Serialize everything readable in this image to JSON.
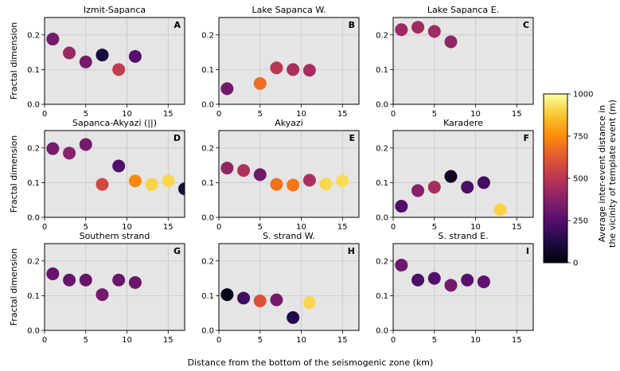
{
  "chart_data": {
    "type": "scatter",
    "xlabel": "Distance from the bottom of the seismogenic zone (km)",
    "ylabel": "Fractal dimension",
    "xlim": [
      0,
      17
    ],
    "ylim": [
      0,
      0.25
    ],
    "xticks": [
      0,
      5,
      10,
      15
    ],
    "xtick_labels": [
      "0",
      "5",
      "10",
      "15"
    ],
    "yticks": [
      0.0,
      0.1,
      0.2
    ],
    "ytick_labels": [
      "0.0",
      "0.1",
      "0.2"
    ],
    "grid": true,
    "colormap": "inferno",
    "colorbar": {
      "label_line1": "Average inter-event distance in",
      "label_line2": "the vicinity of template event (m)",
      "range": [
        0,
        1000
      ],
      "ticks": [
        0,
        250,
        500,
        750,
        1000
      ],
      "tick_labels": [
        "0",
        "250",
        "500",
        "750",
        "1000"
      ]
    },
    "panels": [
      {
        "title": "Izmit-Sapanca",
        "letter": "A",
        "points": [
          {
            "x": 1,
            "y": 0.188,
            "c": 330
          },
          {
            "x": 3,
            "y": 0.148,
            "c": 420
          },
          {
            "x": 5,
            "y": 0.122,
            "c": 330
          },
          {
            "x": 7,
            "y": 0.142,
            "c": 110
          },
          {
            "x": 9,
            "y": 0.1,
            "c": 530
          },
          {
            "x": 11,
            "y": 0.138,
            "c": 260
          }
        ]
      },
      {
        "title": "Lake Sapanca W.",
        "letter": "B",
        "points": [
          {
            "x": 1,
            "y": 0.045,
            "c": 320
          },
          {
            "x": 5,
            "y": 0.06,
            "c": 680
          },
          {
            "x": 7,
            "y": 0.105,
            "c": 500
          },
          {
            "x": 9,
            "y": 0.1,
            "c": 460
          },
          {
            "x": 11,
            "y": 0.098,
            "c": 450
          }
        ]
      },
      {
        "title": "Lake Sapanca E.",
        "letter": "C",
        "points": [
          {
            "x": 1,
            "y": 0.215,
            "c": 430
          },
          {
            "x": 3,
            "y": 0.222,
            "c": 440
          },
          {
            "x": 5,
            "y": 0.21,
            "c": 440
          },
          {
            "x": 7,
            "y": 0.18,
            "c": 400
          }
        ]
      },
      {
        "title": "Sapanca-Akyazi (||)",
        "letter": "D",
        "points": [
          {
            "x": 1,
            "y": 0.198,
            "c": 330
          },
          {
            "x": 3,
            "y": 0.185,
            "c": 380
          },
          {
            "x": 5,
            "y": 0.21,
            "c": 330
          },
          {
            "x": 7,
            "y": 0.095,
            "c": 570
          },
          {
            "x": 9,
            "y": 0.148,
            "c": 240
          },
          {
            "x": 11,
            "y": 0.105,
            "c": 740
          },
          {
            "x": 13,
            "y": 0.095,
            "c": 900
          },
          {
            "x": 15,
            "y": 0.105,
            "c": 910
          },
          {
            "x": 17,
            "y": 0.082,
            "c": 110
          }
        ]
      },
      {
        "title": "Akyazi",
        "letter": "E",
        "points": [
          {
            "x": 1,
            "y": 0.142,
            "c": 400
          },
          {
            "x": 3,
            "y": 0.135,
            "c": 470
          },
          {
            "x": 5,
            "y": 0.123,
            "c": 320
          },
          {
            "x": 7,
            "y": 0.095,
            "c": 690
          },
          {
            "x": 9,
            "y": 0.093,
            "c": 700
          },
          {
            "x": 11,
            "y": 0.107,
            "c": 460
          },
          {
            "x": 13,
            "y": 0.096,
            "c": 910
          },
          {
            "x": 15,
            "y": 0.105,
            "c": 920
          }
        ]
      },
      {
        "title": "Karadere",
        "letter": "F",
        "points": [
          {
            "x": 1,
            "y": 0.032,
            "c": 240
          },
          {
            "x": 3,
            "y": 0.077,
            "c": 370
          },
          {
            "x": 5,
            "y": 0.087,
            "c": 450
          },
          {
            "x": 7,
            "y": 0.118,
            "c": 60
          },
          {
            "x": 9,
            "y": 0.087,
            "c": 230
          },
          {
            "x": 11,
            "y": 0.1,
            "c": 210
          },
          {
            "x": 13,
            "y": 0.022,
            "c": 900
          }
        ]
      },
      {
        "title": "Southern strand",
        "letter": "G",
        "points": [
          {
            "x": 1,
            "y": 0.163,
            "c": 290
          },
          {
            "x": 3,
            "y": 0.145,
            "c": 290
          },
          {
            "x": 5,
            "y": 0.145,
            "c": 290
          },
          {
            "x": 7,
            "y": 0.103,
            "c": 330
          },
          {
            "x": 9,
            "y": 0.145,
            "c": 300
          },
          {
            "x": 11,
            "y": 0.138,
            "c": 300
          }
        ]
      },
      {
        "title": "S. strand W.",
        "letter": "H",
        "points": [
          {
            "x": 1,
            "y": 0.103,
            "c": 40
          },
          {
            "x": 3,
            "y": 0.093,
            "c": 200
          },
          {
            "x": 5,
            "y": 0.085,
            "c": 600
          },
          {
            "x": 7,
            "y": 0.088,
            "c": 330
          },
          {
            "x": 9,
            "y": 0.037,
            "c": 130
          },
          {
            "x": 11,
            "y": 0.08,
            "c": 910
          }
        ]
      },
      {
        "title": "S. strand E.",
        "letter": "I",
        "points": [
          {
            "x": 1,
            "y": 0.188,
            "c": 310
          },
          {
            "x": 3,
            "y": 0.145,
            "c": 230
          },
          {
            "x": 5,
            "y": 0.15,
            "c": 250
          },
          {
            "x": 7,
            "y": 0.13,
            "c": 330
          },
          {
            "x": 9,
            "y": 0.145,
            "c": 260
          },
          {
            "x": 11,
            "y": 0.14,
            "c": 270
          }
        ]
      }
    ]
  }
}
